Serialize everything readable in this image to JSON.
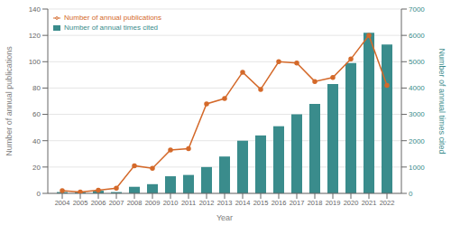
{
  "chart_data": {
    "type": "bar",
    "x": [
      2004,
      2005,
      2006,
      2007,
      2008,
      2009,
      2010,
      2011,
      2012,
      2013,
      2014,
      2015,
      2016,
      2017,
      2018,
      2019,
      2020,
      2021,
      2022
    ],
    "series": [
      {
        "name": "Number of annual times cited",
        "type": "bar",
        "color": "#3a8c8c",
        "values": [
          1,
          1,
          2,
          1,
          5,
          7,
          13,
          14,
          20,
          28,
          40,
          44,
          51,
          60,
          68,
          83,
          99,
          122,
          113
        ]
      },
      {
        "name": "Number of annual publications",
        "type": "line",
        "color": "#d4692a",
        "marker": "circle",
        "axis": "y2",
        "values": [
          100,
          50,
          120,
          200,
          1050,
          950,
          1650,
          1700,
          3400,
          3600,
          4600,
          3950,
          5000,
          4950,
          4250,
          4400,
          5100,
          6000,
          4100
        ]
      }
    ],
    "xlabel": "Year",
    "ylabel": "Number of annual publications",
    "y2label": "Number of annual times cited",
    "xlim": [
      2003.2,
      2022.8
    ],
    "xticks": [
      2004,
      2005,
      2006,
      2007,
      2008,
      2009,
      2010,
      2011,
      2012,
      2013,
      2014,
      2015,
      2016,
      2017,
      2018,
      2019,
      2020,
      2021,
      2022
    ],
    "ylim": [
      0,
      140
    ],
    "yticks": [
      0,
      20,
      40,
      60,
      80,
      100,
      120,
      140
    ],
    "y2lim": [
      0,
      7000
    ],
    "y2ticks": [
      0,
      1000,
      2000,
      3000,
      4000,
      5000,
      6000,
      7000
    ],
    "grid": "y",
    "legend": "upper left"
  }
}
